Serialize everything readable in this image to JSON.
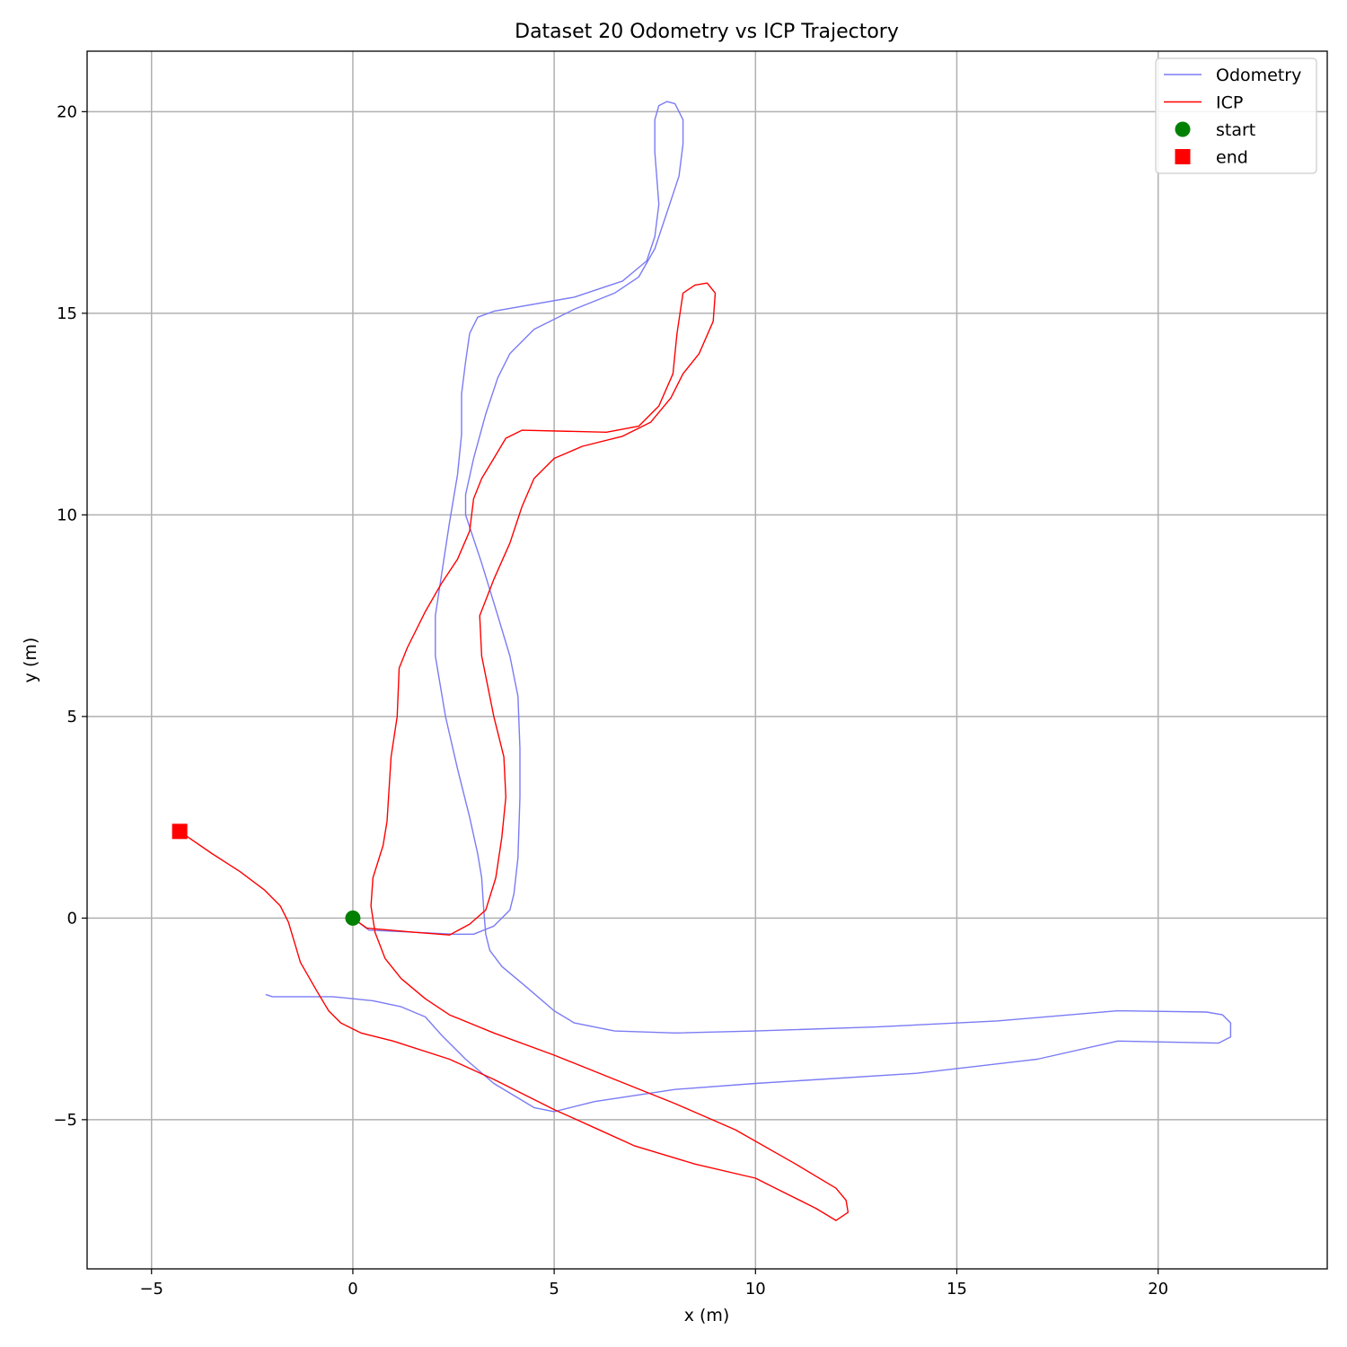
{
  "chart_data": {
    "type": "line",
    "title": "Dataset 20 Odometry vs ICP Trajectory",
    "xlabel": "x (m)",
    "ylabel": "y (m)",
    "xlim": [
      -6.6,
      24.2
    ],
    "ylim": [
      -8.7,
      21.5
    ],
    "xticks": [
      -5,
      0,
      5,
      10,
      15,
      20
    ],
    "yticks": [
      -5,
      0,
      5,
      10,
      15,
      20
    ],
    "xtick_labels": [
      "−5",
      "0",
      "5",
      "10",
      "15",
      "20"
    ],
    "ytick_labels": [
      "−5",
      "0",
      "5",
      "10",
      "15",
      "20"
    ],
    "grid": true,
    "legend_position": "upper right",
    "legend": [
      {
        "label": "Odometry",
        "kind": "line",
        "color": "#7b7bf5"
      },
      {
        "label": "ICP",
        "kind": "line",
        "color": "#ff0000"
      },
      {
        "label": "start",
        "kind": "circle",
        "color": "#008000"
      },
      {
        "label": "end",
        "kind": "square",
        "color": "#ff0000"
      }
    ],
    "series": [
      {
        "name": "Odometry",
        "color": "#7b7bf5",
        "points": [
          [
            0,
            0
          ],
          [
            0.4,
            -0.3
          ],
          [
            1.5,
            -0.35
          ],
          [
            2.5,
            -0.4
          ],
          [
            3.0,
            -0.4
          ],
          [
            3.5,
            -0.2
          ],
          [
            3.9,
            0.2
          ],
          [
            4.0,
            0.6
          ],
          [
            4.1,
            1.5
          ],
          [
            4.15,
            3.0
          ],
          [
            4.15,
            4.2
          ],
          [
            4.1,
            5.5
          ],
          [
            3.9,
            6.5
          ],
          [
            3.6,
            7.5
          ],
          [
            3.2,
            8.8
          ],
          [
            2.8,
            10.0
          ],
          [
            2.8,
            10.5
          ],
          [
            3.0,
            11.4
          ],
          [
            3.3,
            12.5
          ],
          [
            3.6,
            13.4
          ],
          [
            3.9,
            14.0
          ],
          [
            4.5,
            14.6
          ],
          [
            5.5,
            15.1
          ],
          [
            6.5,
            15.5
          ],
          [
            7.1,
            15.9
          ],
          [
            7.5,
            16.6
          ],
          [
            7.8,
            17.5
          ],
          [
            8.1,
            18.4
          ],
          [
            8.2,
            19.2
          ],
          [
            8.2,
            19.8
          ],
          [
            8.0,
            20.2
          ],
          [
            7.8,
            20.25
          ],
          [
            7.6,
            20.15
          ],
          [
            7.5,
            19.8
          ],
          [
            7.5,
            19.0
          ],
          [
            7.6,
            17.7
          ],
          [
            7.5,
            16.9
          ],
          [
            7.3,
            16.3
          ],
          [
            6.7,
            15.8
          ],
          [
            5.5,
            15.4
          ],
          [
            3.5,
            15.05
          ],
          [
            3.1,
            14.9
          ],
          [
            2.9,
            14.5
          ],
          [
            2.8,
            13.8
          ],
          [
            2.7,
            13.0
          ],
          [
            2.7,
            12.0
          ],
          [
            2.6,
            11.0
          ],
          [
            2.4,
            9.8
          ],
          [
            2.2,
            8.5
          ],
          [
            2.05,
            7.5
          ],
          [
            2.05,
            6.5
          ],
          [
            2.3,
            5.0
          ],
          [
            2.6,
            3.7
          ],
          [
            2.9,
            2.5
          ],
          [
            3.1,
            1.6
          ],
          [
            3.2,
            1.0
          ],
          [
            3.25,
            0.2
          ],
          [
            3.3,
            -0.4
          ],
          [
            3.4,
            -0.8
          ],
          [
            3.7,
            -1.2
          ],
          [
            4.3,
            -1.7
          ],
          [
            5.0,
            -2.3
          ],
          [
            5.5,
            -2.6
          ],
          [
            6.5,
            -2.8
          ],
          [
            8.0,
            -2.85
          ],
          [
            10.0,
            -2.8
          ],
          [
            13.0,
            -2.7
          ],
          [
            16.0,
            -2.55
          ],
          [
            19.0,
            -2.3
          ],
          [
            21.2,
            -2.33
          ],
          [
            21.6,
            -2.4
          ],
          [
            21.8,
            -2.6
          ],
          [
            21.8,
            -2.95
          ],
          [
            21.5,
            -3.1
          ],
          [
            20.5,
            -3.08
          ],
          [
            19.0,
            -3.05
          ],
          [
            17.0,
            -3.5
          ],
          [
            14.0,
            -3.85
          ],
          [
            10.0,
            -4.1
          ],
          [
            8.0,
            -4.25
          ],
          [
            6.0,
            -4.55
          ],
          [
            5.0,
            -4.8
          ],
          [
            4.5,
            -4.7
          ],
          [
            3.5,
            -4.1
          ],
          [
            2.8,
            -3.5
          ],
          [
            2.2,
            -2.9
          ],
          [
            1.8,
            -2.45
          ],
          [
            1.2,
            -2.2
          ],
          [
            0.5,
            -2.05
          ],
          [
            -0.5,
            -1.95
          ],
          [
            -2.0,
            -1.95
          ],
          [
            -2.15,
            -1.9
          ]
        ]
      },
      {
        "name": "ICP",
        "color": "#ff0000",
        "points": [
          [
            0,
            0
          ],
          [
            0.35,
            -0.25
          ],
          [
            1.5,
            -0.35
          ],
          [
            2.4,
            -0.42
          ],
          [
            2.9,
            -0.15
          ],
          [
            3.3,
            0.2
          ],
          [
            3.55,
            1.0
          ],
          [
            3.7,
            2.0
          ],
          [
            3.8,
            3.0
          ],
          [
            3.75,
            4.0
          ],
          [
            3.5,
            5.0
          ],
          [
            3.4,
            5.5
          ],
          [
            3.2,
            6.5
          ],
          [
            3.15,
            7.5
          ],
          [
            3.5,
            8.4
          ],
          [
            3.9,
            9.3
          ],
          [
            4.2,
            10.2
          ],
          [
            4.5,
            10.9
          ],
          [
            5.0,
            11.4
          ],
          [
            5.7,
            11.7
          ],
          [
            6.7,
            11.95
          ],
          [
            7.4,
            12.3
          ],
          [
            7.9,
            12.9
          ],
          [
            8.2,
            13.5
          ],
          [
            8.6,
            14.0
          ],
          [
            8.95,
            14.8
          ],
          [
            9.0,
            15.5
          ],
          [
            8.8,
            15.75
          ],
          [
            8.5,
            15.7
          ],
          [
            8.2,
            15.5
          ],
          [
            8.05,
            14.5
          ],
          [
            7.95,
            13.5
          ],
          [
            7.6,
            12.7
          ],
          [
            7.1,
            12.2
          ],
          [
            6.3,
            12.05
          ],
          [
            4.2,
            12.1
          ],
          [
            3.8,
            11.9
          ],
          [
            3.5,
            11.4
          ],
          [
            3.2,
            10.9
          ],
          [
            3.0,
            10.4
          ],
          [
            2.9,
            9.6
          ],
          [
            2.6,
            8.9
          ],
          [
            2.2,
            8.3
          ],
          [
            1.8,
            7.6
          ],
          [
            1.35,
            6.7
          ],
          [
            1.15,
            6.2
          ],
          [
            1.1,
            5.0
          ],
          [
            0.95,
            4.0
          ],
          [
            0.85,
            2.4
          ],
          [
            0.75,
            1.8
          ],
          [
            0.5,
            1.0
          ],
          [
            0.45,
            0.3
          ],
          [
            0.55,
            -0.35
          ],
          [
            0.8,
            -1.0
          ],
          [
            1.2,
            -1.5
          ],
          [
            1.8,
            -2.0
          ],
          [
            2.4,
            -2.4
          ],
          [
            3.5,
            -2.85
          ],
          [
            5.0,
            -3.4
          ],
          [
            6.5,
            -4.0
          ],
          [
            8.0,
            -4.6
          ],
          [
            9.5,
            -5.25
          ],
          [
            11.0,
            -6.1
          ],
          [
            12.0,
            -6.7
          ],
          [
            12.25,
            -7.0
          ],
          [
            12.3,
            -7.3
          ],
          [
            12.0,
            -7.5
          ],
          [
            11.5,
            -7.2
          ],
          [
            10.5,
            -6.7
          ],
          [
            10.0,
            -6.45
          ],
          [
            8.5,
            -6.1
          ],
          [
            7.0,
            -5.65
          ],
          [
            6.0,
            -5.2
          ],
          [
            5.0,
            -4.75
          ],
          [
            3.5,
            -4.0
          ],
          [
            2.4,
            -3.5
          ],
          [
            1.0,
            -3.05
          ],
          [
            0.2,
            -2.85
          ],
          [
            -0.3,
            -2.6
          ],
          [
            -0.6,
            -2.3
          ],
          [
            -0.9,
            -1.8
          ],
          [
            -1.3,
            -1.1
          ],
          [
            -1.45,
            -0.6
          ],
          [
            -1.6,
            -0.1
          ],
          [
            -1.8,
            0.3
          ],
          [
            -2.2,
            0.7
          ],
          [
            -2.8,
            1.15
          ],
          [
            -3.5,
            1.6
          ],
          [
            -4.3,
            2.15
          ]
        ]
      }
    ],
    "markers": [
      {
        "name": "start",
        "x": 0,
        "y": 0,
        "shape": "circle",
        "color": "#008000"
      },
      {
        "name": "end",
        "x": -4.3,
        "y": 2.15,
        "shape": "square",
        "color": "#ff0000"
      }
    ]
  }
}
